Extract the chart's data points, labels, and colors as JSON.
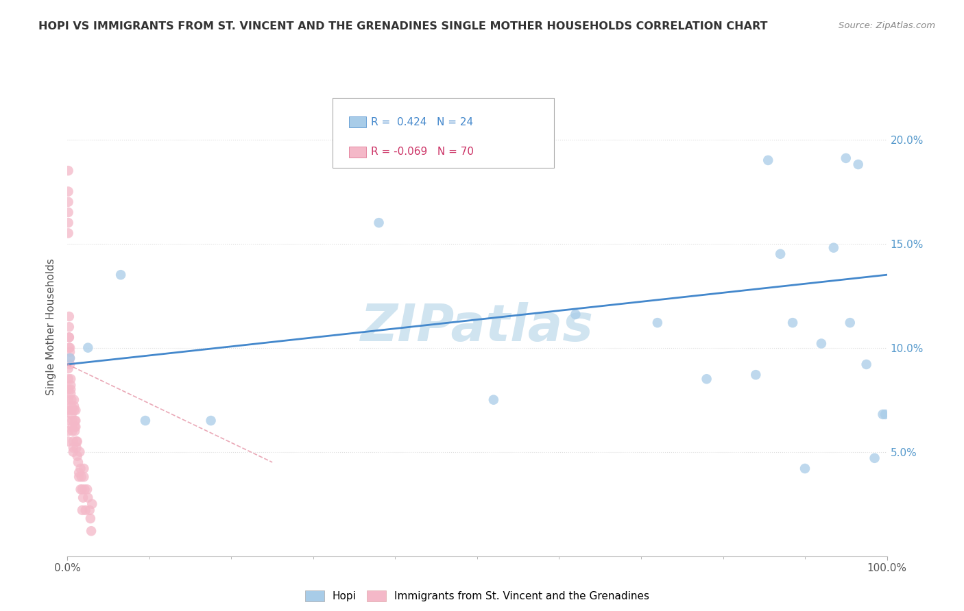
{
  "title": "HOPI VS IMMIGRANTS FROM ST. VINCENT AND THE GRENADINES SINGLE MOTHER HOUSEHOLDS CORRELATION CHART",
  "source": "Source: ZipAtlas.com",
  "ylabel": "Single Mother Households",
  "r_hopi": 0.424,
  "n_hopi": 24,
  "r_svg": -0.069,
  "n_svg": 70,
  "hopi_color": "#a8cce8",
  "svg_color": "#f4b8c8",
  "hopi_line_color": "#4488cc",
  "svg_line_color": "#e8a0b0",
  "watermark_color": "#d0e4f0",
  "xlim": [
    0,
    1.0
  ],
  "ylim": [
    0,
    0.22
  ],
  "hopi_x": [
    0.003,
    0.025,
    0.065,
    0.095,
    0.175,
    0.38,
    0.52,
    0.62,
    0.72,
    0.78,
    0.84,
    0.855,
    0.87,
    0.885,
    0.9,
    0.92,
    0.935,
    0.95,
    0.955,
    0.965,
    0.975,
    0.985,
    0.995,
    0.998
  ],
  "hopi_y": [
    0.095,
    0.1,
    0.135,
    0.065,
    0.065,
    0.16,
    0.075,
    0.116,
    0.112,
    0.085,
    0.087,
    0.19,
    0.145,
    0.112,
    0.042,
    0.102,
    0.148,
    0.191,
    0.112,
    0.188,
    0.092,
    0.047,
    0.068,
    0.068
  ],
  "svg_x": [
    0.001,
    0.001,
    0.001,
    0.001,
    0.001,
    0.001,
    0.002,
    0.002,
    0.003,
    0.003,
    0.004,
    0.004,
    0.005,
    0.005,
    0.006,
    0.006,
    0.007,
    0.007,
    0.008,
    0.008,
    0.009,
    0.009,
    0.01,
    0.01,
    0.011,
    0.012,
    0.013,
    0.014,
    0.015,
    0.016,
    0.017,
    0.018,
    0.019,
    0.02,
    0.021,
    0.022,
    0.024,
    0.025,
    0.027,
    0.028,
    0.029,
    0.03,
    0.001,
    0.001,
    0.001,
    0.001,
    0.001,
    0.001,
    0.001,
    0.001,
    0.002,
    0.002,
    0.002,
    0.003,
    0.003,
    0.004,
    0.004,
    0.005,
    0.005,
    0.006,
    0.007,
    0.008,
    0.009,
    0.01,
    0.011,
    0.012,
    0.014,
    0.016,
    0.018,
    0.02
  ],
  "svg_y": [
    0.185,
    0.175,
    0.17,
    0.165,
    0.16,
    0.155,
    0.115,
    0.105,
    0.1,
    0.095,
    0.085,
    0.08,
    0.075,
    0.07,
    0.065,
    0.06,
    0.055,
    0.05,
    0.075,
    0.07,
    0.065,
    0.06,
    0.07,
    0.065,
    0.055,
    0.055,
    0.045,
    0.04,
    0.05,
    0.042,
    0.038,
    0.032,
    0.028,
    0.042,
    0.032,
    0.022,
    0.032,
    0.028,
    0.022,
    0.018,
    0.012,
    0.025,
    0.09,
    0.085,
    0.08,
    0.075,
    0.07,
    0.065,
    0.06,
    0.055,
    0.11,
    0.105,
    0.1,
    0.098,
    0.092,
    0.082,
    0.078,
    0.072,
    0.068,
    0.062,
    0.052,
    0.072,
    0.062,
    0.062,
    0.052,
    0.048,
    0.038,
    0.032,
    0.022,
    0.038
  ]
}
